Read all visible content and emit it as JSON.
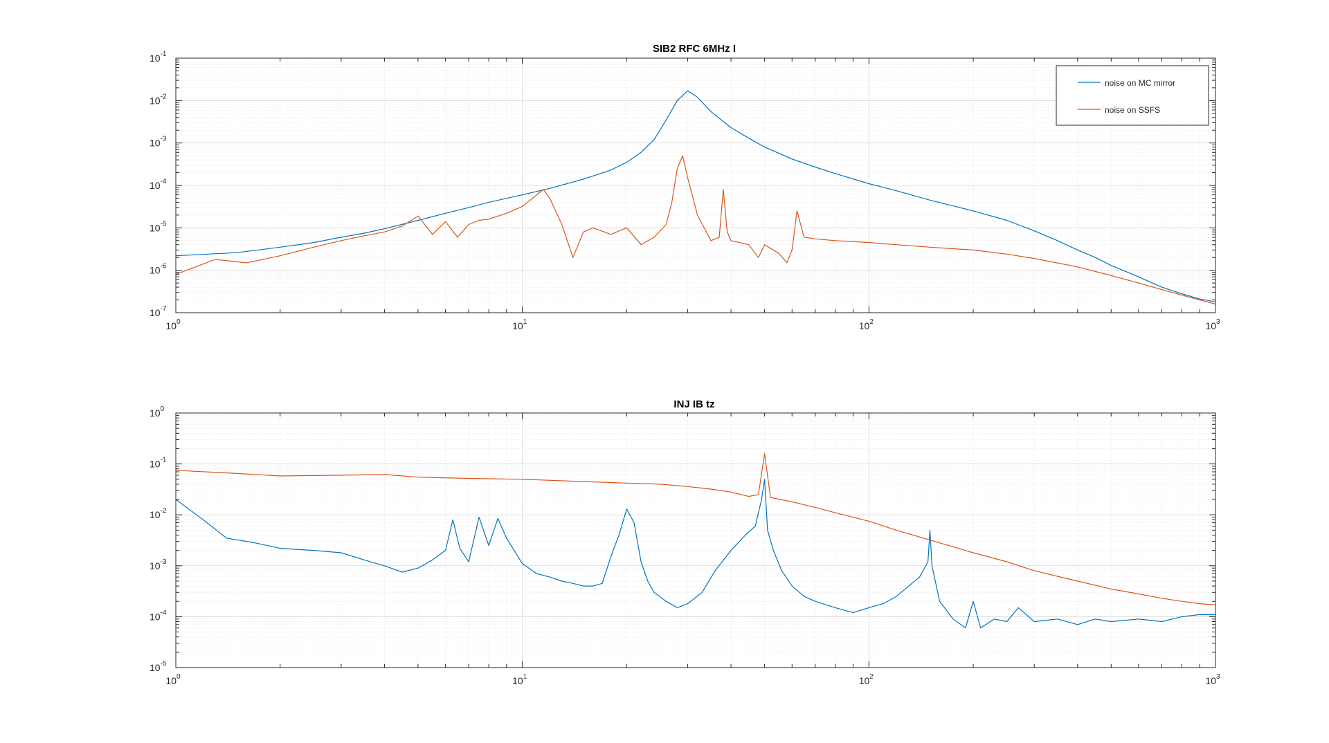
{
  "colors": {
    "series_blue": "#0072BD",
    "series_orange": "#D95319",
    "axis": "#262626",
    "grid_major": "#dcdcdc",
    "grid_minor": "#efefef"
  },
  "chart_data": [
    {
      "type": "line",
      "title": "SIB2 RFC 6MHz I",
      "xscale": "log",
      "yscale": "log",
      "xlim": [
        1,
        1000
      ],
      "ylim": [
        1e-07,
        0.1
      ],
      "x_ticks": [
        {
          "base": "10",
          "exp": "0"
        },
        {
          "base": "10",
          "exp": "1"
        },
        {
          "base": "10",
          "exp": "2"
        },
        {
          "base": "10",
          "exp": "3"
        }
      ],
      "y_ticks": [
        {
          "base": "10",
          "exp": "-7"
        },
        {
          "base": "10",
          "exp": "-6"
        },
        {
          "base": "10",
          "exp": "-5"
        },
        {
          "base": "10",
          "exp": "-4"
        },
        {
          "base": "10",
          "exp": "-3"
        },
        {
          "base": "10",
          "exp": "-2"
        },
        {
          "base": "10",
          "exp": "-1"
        }
      ],
      "grid": true,
      "legend": {
        "position": "top-right",
        "entries": [
          "noise on MC mirror",
          "noise on SSFS"
        ]
      },
      "series": [
        {
          "name": "noise on MC mirror",
          "color": "#0072BD",
          "x": [
            1,
            1.5,
            2,
            2.5,
            3,
            3.5,
            4,
            5,
            6,
            7,
            8,
            10,
            12,
            15,
            18,
            20,
            22,
            24,
            26,
            28,
            30,
            32,
            35,
            40,
            45,
            50,
            60,
            70,
            80,
            100,
            120,
            150,
            200,
            250,
            300,
            350,
            400,
            450,
            500,
            600,
            700,
            800,
            900,
            1000
          ],
          "y": [
            2.2e-06,
            2.6e-06,
            3.5e-06,
            4.5e-06,
            6e-06,
            7.5e-06,
            9.5e-06,
            1.5e-05,
            2.2e-05,
            3e-05,
            4e-05,
            6e-05,
            8.5e-05,
            0.00014,
            0.00023,
            0.00035,
            0.0006,
            0.0012,
            0.0035,
            0.01,
            0.017,
            0.012,
            0.0055,
            0.0023,
            0.0013,
            0.0008,
            0.00042,
            0.00027,
            0.00019,
            0.00011,
            7.5e-05,
            4.5e-05,
            2.5e-05,
            1.5e-05,
            8.5e-06,
            5e-06,
            3e-06,
            2e-06,
            1.3e-06,
            7e-07,
            4e-07,
            2.8e-07,
            2.1e-07,
            1.8e-07
          ]
        },
        {
          "name": "noise on SSFS",
          "color": "#D95319",
          "x": [
            1,
            1.3,
            1.6,
            2,
            2.5,
            3,
            3.5,
            4,
            4.5,
            5,
            5.5,
            6,
            6.5,
            7,
            7.5,
            8,
            9,
            10,
            11,
            11.5,
            12,
            13,
            14,
            15,
            16,
            18,
            20,
            22,
            24,
            26,
            27,
            28,
            29,
            30,
            32,
            35,
            37,
            38,
            39,
            40,
            45,
            48,
            50,
            55,
            58,
            60,
            62,
            65,
            70,
            80,
            100,
            120,
            150,
            200,
            250,
            300,
            400,
            500,
            600,
            700,
            800,
            900,
            1000
          ],
          "y": [
            8e-07,
            1.8e-06,
            1.5e-06,
            2.2e-06,
            3.5e-06,
            5e-06,
            6.5e-06,
            8e-06,
            1.1e-05,
            1.9e-05,
            7e-06,
            1.4e-05,
            6e-06,
            1.2e-05,
            1.5e-05,
            1.6e-05,
            2.2e-05,
            3.2e-05,
            6e-05,
            8e-05,
            5e-05,
            1.2e-05,
            2e-06,
            8e-06,
            1e-05,
            7e-06,
            1e-05,
            4e-06,
            6e-06,
            1.2e-05,
            4e-05,
            0.00025,
            0.0005,
            0.00015,
            2e-05,
            5e-06,
            6e-06,
            8e-05,
            8e-06,
            5e-06,
            4e-06,
            2e-06,
            4e-06,
            2.5e-06,
            1.5e-06,
            3e-06,
            2.5e-05,
            6e-06,
            5.5e-06,
            5e-06,
            4.5e-06,
            4e-06,
            3.5e-06,
            3e-06,
            2.4e-06,
            1.9e-06,
            1.2e-06,
            7.5e-07,
            5e-07,
            3.5e-07,
            2.6e-07,
            2e-07,
            1.6e-07
          ]
        }
      ]
    },
    {
      "type": "line",
      "title": "INJ IB tz",
      "xscale": "log",
      "yscale": "log",
      "xlim": [
        1,
        1000
      ],
      "ylim": [
        1e-05,
        1
      ],
      "x_ticks": [
        {
          "base": "10",
          "exp": "0"
        },
        {
          "base": "10",
          "exp": "1"
        },
        {
          "base": "10",
          "exp": "2"
        },
        {
          "base": "10",
          "exp": "3"
        }
      ],
      "y_ticks": [
        {
          "base": "10",
          "exp": "-5"
        },
        {
          "base": "10",
          "exp": "-4"
        },
        {
          "base": "10",
          "exp": "-3"
        },
        {
          "base": "10",
          "exp": "-2"
        },
        {
          "base": "10",
          "exp": "-1"
        },
        {
          "base": "10",
          "exp": "0"
        }
      ],
      "grid": true,
      "series": [
        {
          "color": "#0072BD",
          "x": [
            1,
            1.2,
            1.4,
            1.7,
            2,
            2.5,
            3,
            3.5,
            4,
            4.5,
            5,
            5.5,
            6,
            6.3,
            6.6,
            7,
            7.5,
            8,
            8.5,
            9,
            10,
            11,
            12,
            13,
            14,
            15,
            16,
            17,
            18,
            19,
            20,
            21,
            22,
            23,
            24,
            26,
            28,
            30,
            33,
            36,
            40,
            44,
            47,
            49,
            50,
            51,
            53,
            56,
            60,
            65,
            70,
            80,
            90,
            100,
            110,
            120,
            140,
            148,
            150,
            152,
            160,
            175,
            190,
            200,
            210,
            230,
            250,
            270,
            300,
            350,
            400,
            450,
            500,
            600,
            700,
            800,
            900,
            1000
          ],
          "y": [
            0.02,
            0.008,
            0.0035,
            0.0028,
            0.0022,
            0.002,
            0.0018,
            0.0013,
            0.001,
            0.00075,
            0.0009,
            0.0013,
            0.002,
            0.008,
            0.0022,
            0.0012,
            0.009,
            0.0025,
            0.0085,
            0.0035,
            0.0011,
            0.0007,
            0.0006,
            0.0005,
            0.00045,
            0.0004,
            0.0004,
            0.00045,
            0.0015,
            0.004,
            0.013,
            0.007,
            0.0012,
            0.0005,
            0.0003,
            0.0002,
            0.00015,
            0.00018,
            0.0003,
            0.0008,
            0.002,
            0.004,
            0.006,
            0.02,
            0.05,
            0.005,
            0.002,
            0.0008,
            0.0004,
            0.00025,
            0.0002,
            0.00015,
            0.00012,
            0.00015,
            0.00018,
            0.00025,
            0.0006,
            0.0012,
            0.005,
            0.001,
            0.0002,
            9e-05,
            6e-05,
            0.0002,
            6e-05,
            9e-05,
            8e-05,
            0.00015,
            8e-05,
            9e-05,
            7e-05,
            9e-05,
            8e-05,
            9e-05,
            8e-05,
            0.0001,
            0.00011,
            0.00011
          ]
        },
        {
          "color": "#D95319",
          "x": [
            1,
            1.5,
            2,
            3,
            4,
            5,
            7,
            10,
            15,
            20,
            25,
            30,
            35,
            40,
            45,
            48,
            50,
            52,
            60,
            70,
            80,
            100,
            120,
            150,
            200,
            250,
            300,
            400,
            500,
            600,
            700,
            800,
            900,
            1000
          ],
          "y": [
            0.075,
            0.065,
            0.058,
            0.06,
            0.062,
            0.055,
            0.052,
            0.05,
            0.045,
            0.042,
            0.04,
            0.036,
            0.032,
            0.028,
            0.023,
            0.025,
            0.16,
            0.022,
            0.018,
            0.014,
            0.011,
            0.0075,
            0.005,
            0.0032,
            0.0018,
            0.0012,
            0.0008,
            0.0005,
            0.00035,
            0.00028,
            0.00023,
            0.0002,
            0.00018,
            0.00017
          ]
        }
      ]
    }
  ]
}
